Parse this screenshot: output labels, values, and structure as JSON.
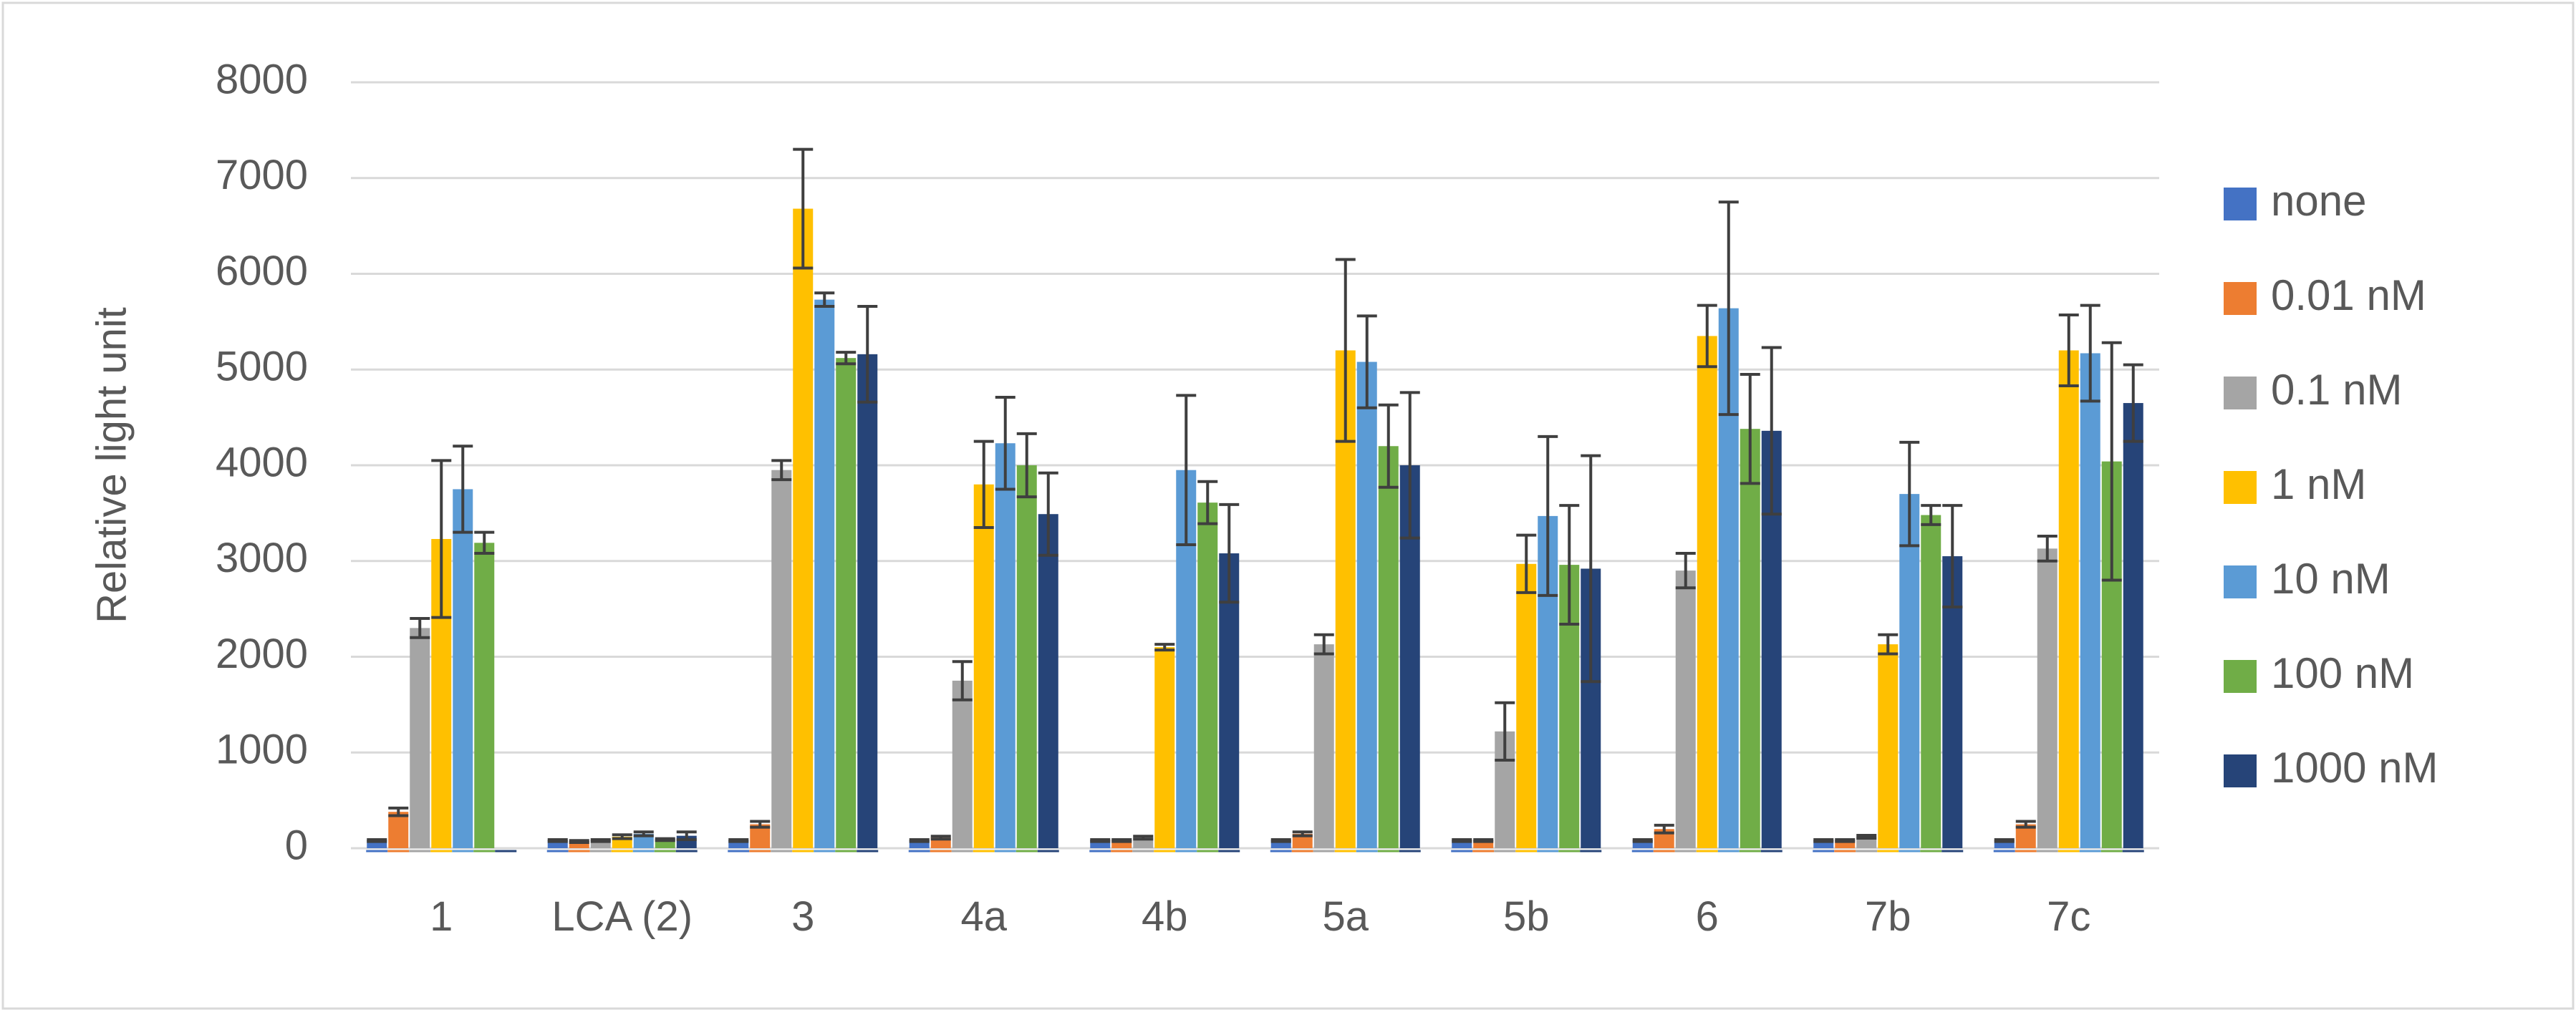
{
  "chart_data": {
    "type": "bar",
    "title": "",
    "xlabel": "",
    "ylabel": "Relative light unit",
    "ylim": [
      0,
      8000
    ],
    "yticks": [
      0,
      1000,
      2000,
      3000,
      4000,
      5000,
      6000,
      7000,
      8000
    ],
    "grid": true,
    "legend_position": "right",
    "categories": [
      "1",
      "LCA (2)",
      "3",
      "4a",
      "4b",
      "5a",
      "5b",
      "6",
      "7b",
      "7c"
    ],
    "series": [
      {
        "name": "none",
        "color": "#4472C4",
        "values": [
          80,
          80,
          80,
          80,
          80,
          80,
          80,
          80,
          80,
          80
        ],
        "errors": [
          10,
          10,
          10,
          10,
          10,
          10,
          10,
          10,
          10,
          10
        ]
      },
      {
        "name": "0.01 nM",
        "color": "#ED7D31",
        "values": [
          380,
          70,
          250,
          110,
          80,
          150,
          80,
          200,
          80,
          250
        ],
        "errors": [
          40,
          10,
          30,
          15,
          10,
          20,
          10,
          40,
          10,
          30
        ]
      },
      {
        "name": "0.1 nM",
        "color": "#A5A5A5",
        "values": [
          2300,
          80,
          3950,
          1750,
          110,
          2130,
          1220,
          2900,
          120,
          3130
        ],
        "errors": [
          100,
          10,
          100,
          200,
          15,
          100,
          300,
          180,
          15,
          130
        ]
      },
      {
        "name": "1 nM",
        "color": "#FFC000",
        "values": [
          3230,
          120,
          6680,
          3800,
          2100,
          5200,
          2970,
          5350,
          2130,
          5200
        ],
        "errors": [
          820,
          20,
          620,
          450,
          30,
          950,
          300,
          320,
          100,
          370
        ]
      },
      {
        "name": "10 nM",
        "color": "#5B9BD5",
        "values": [
          3750,
          150,
          5730,
          4230,
          3950,
          5080,
          3470,
          5640,
          3700,
          5170
        ],
        "errors": [
          450,
          20,
          70,
          480,
          780,
          480,
          830,
          1110,
          540,
          500
        ]
      },
      {
        "name": "100 nM",
        "color": "#70AD47",
        "values": [
          3190,
          90,
          5120,
          4000,
          3610,
          4200,
          2960,
          4380,
          3480,
          4040
        ],
        "errors": [
          110,
          10,
          60,
          330,
          220,
          430,
          620,
          570,
          100,
          1240
        ]
      },
      {
        "name": "1000 nM",
        "color": "#264478",
        "values": [
          0,
          130,
          5160,
          3490,
          3080,
          4000,
          2920,
          4360,
          3050,
          4650
        ],
        "errors": [
          0,
          40,
          500,
          430,
          510,
          760,
          1180,
          870,
          530,
          400
        ]
      }
    ]
  }
}
